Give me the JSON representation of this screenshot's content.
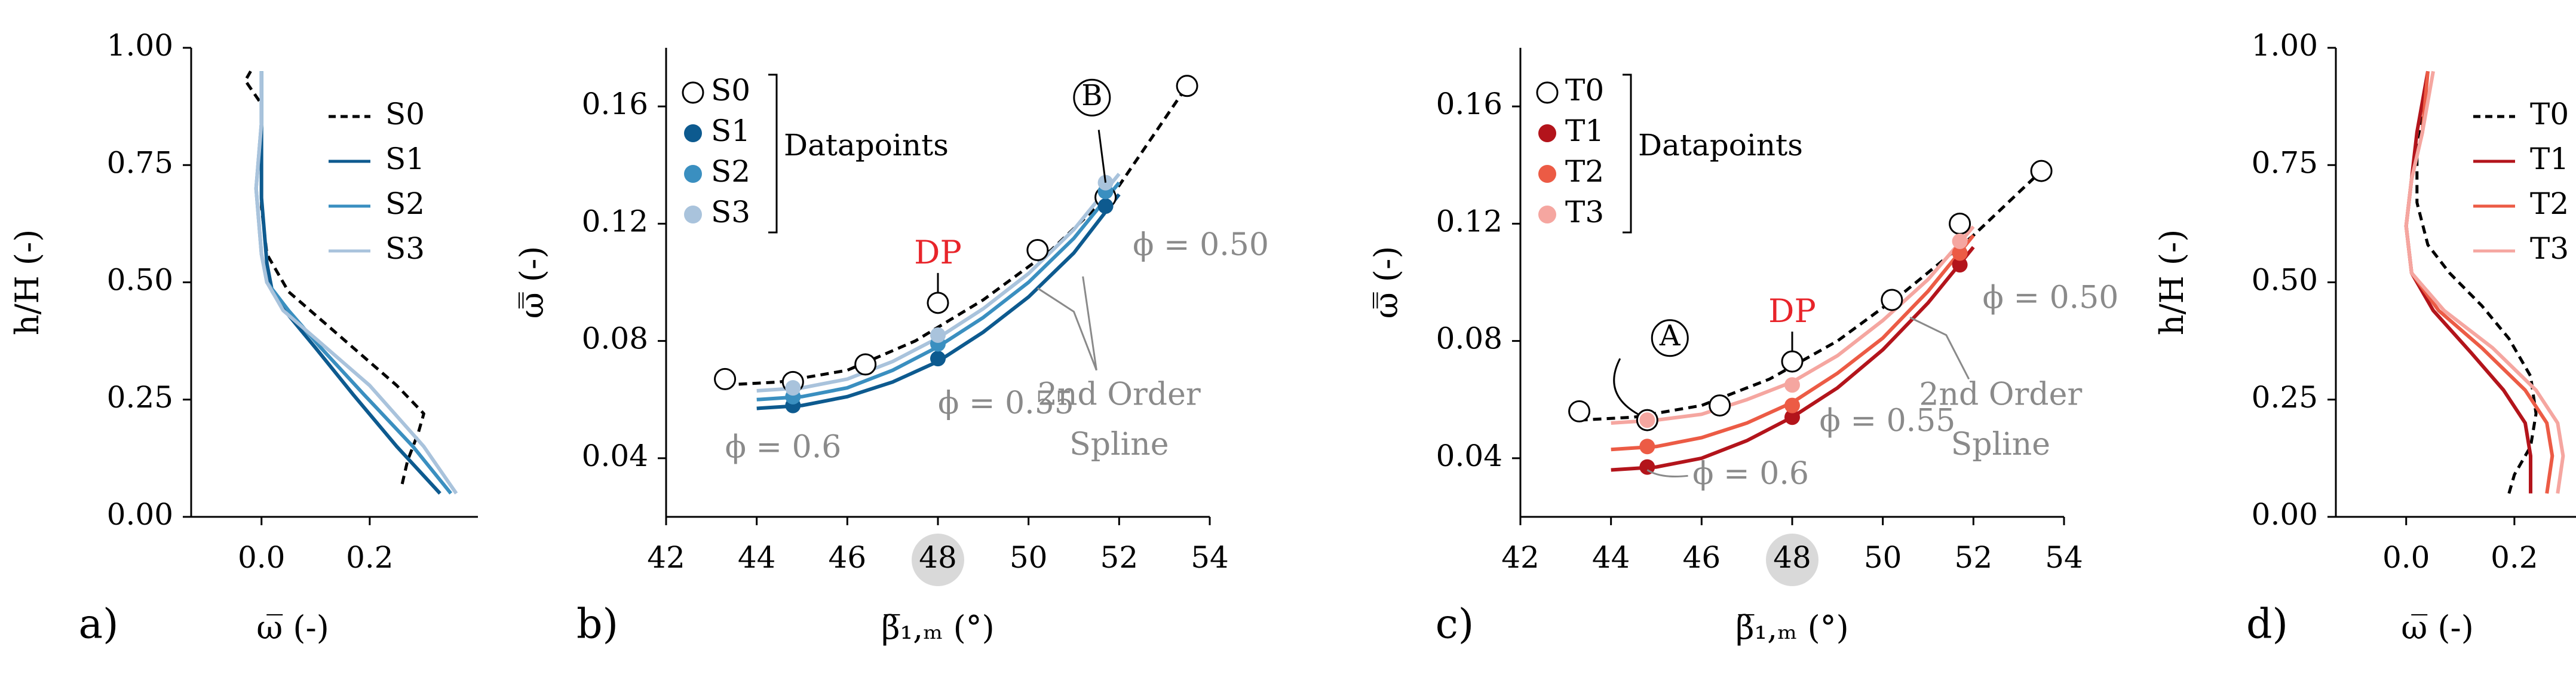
{
  "panels": {
    "a": {
      "label": "a)",
      "xlabel": "ω̅ (-)",
      "ylabel": "h/H (-)"
    },
    "b": {
      "label": "b)",
      "xlabel": "β̅₁,ₘ (°)",
      "ylabel": "ω̿ (-)"
    },
    "c": {
      "label": "c)",
      "xlabel": "β̅₁,ₘ (°)",
      "ylabel": "ω̿ (-)"
    },
    "d": {
      "label": "d)",
      "xlabel": "ω̅ (-)",
      "ylabel": "h/H (-)"
    }
  },
  "annotations": {
    "datapoints": "Datapoints",
    "dp": "DP",
    "spline_line1": "2nd Order",
    "spline_line2": "Spline",
    "phi_050": "ϕ = 0.50",
    "phi_055": "ϕ = 0.55",
    "phi_06": "ϕ = 0.6",
    "marker_b": "B",
    "marker_a": "A"
  },
  "colors": {
    "S0": "#000000",
    "S1": "#0d5a8f",
    "S2": "#3a8fc0",
    "S3": "#a9c3dc",
    "T0": "#000000",
    "T1": "#b3141b",
    "T2": "#ec5b45",
    "T3": "#f5a6a0",
    "annotation_gray": "#8a8a8a",
    "dp_red": "#e8242a",
    "highlight": "#d9d9d9"
  },
  "chart_data": [
    {
      "type": "line",
      "panel": "a",
      "xlabel": "ω̅ (-)",
      "ylabel": "h/H (-)",
      "xlim": [
        -0.13,
        0.4
      ],
      "ylim": [
        0,
        1
      ],
      "xticks": [
        "0.0",
        "0.2"
      ],
      "yticks": [
        "0.00",
        "0.25",
        "0.50",
        "0.75",
        "1.00"
      ],
      "legend": "top-right",
      "series": [
        {
          "name": "S0",
          "style": "dashed",
          "points": [
            [
              0.26,
              0.07
            ],
            [
              0.27,
              0.12
            ],
            [
              0.29,
              0.18
            ],
            [
              0.3,
              0.22
            ],
            [
              0.25,
              0.28
            ],
            [
              0.18,
              0.35
            ],
            [
              0.11,
              0.42
            ],
            [
              0.05,
              0.48
            ],
            [
              0.01,
              0.56
            ],
            [
              0.0,
              0.66
            ],
            [
              0.0,
              0.8
            ],
            [
              0.0,
              0.88
            ],
            [
              -0.03,
              0.93
            ],
            [
              -0.02,
              0.95
            ]
          ]
        },
        {
          "name": "S1",
          "style": "solid",
          "points": [
            [
              0.33,
              0.05
            ],
            [
              0.25,
              0.15
            ],
            [
              0.17,
              0.26
            ],
            [
              0.1,
              0.36
            ],
            [
              0.05,
              0.43
            ],
            [
              0.02,
              0.48
            ],
            [
              0.01,
              0.54
            ],
            [
              0.0,
              0.68
            ],
            [
              0.0,
              0.84
            ],
            [
              0.0,
              0.95
            ]
          ]
        },
        {
          "name": "S2",
          "style": "solid",
          "points": [
            [
              0.35,
              0.05
            ],
            [
              0.28,
              0.15
            ],
            [
              0.19,
              0.26
            ],
            [
              0.11,
              0.36
            ],
            [
              0.05,
              0.44
            ],
            [
              0.01,
              0.5
            ],
            [
              0.0,
              0.56
            ],
            [
              -0.01,
              0.7
            ],
            [
              0.0,
              0.84
            ],
            [
              0.0,
              0.95
            ]
          ]
        },
        {
          "name": "S3",
          "style": "solid",
          "points": [
            [
              0.36,
              0.05
            ],
            [
              0.3,
              0.15
            ],
            [
              0.2,
              0.28
            ],
            [
              0.11,
              0.37
            ],
            [
              0.04,
              0.44
            ],
            [
              0.01,
              0.5
            ],
            [
              0.0,
              0.56
            ],
            [
              -0.01,
              0.7
            ],
            [
              0.0,
              0.84
            ],
            [
              0.0,
              0.95
            ]
          ]
        }
      ]
    },
    {
      "type": "scatter",
      "panel": "b",
      "xlabel": "β̅₁,ₘ (°)",
      "ylabel": "ω̿ (-)",
      "xlim": [
        42,
        54
      ],
      "ylim": [
        0.02,
        0.18
      ],
      "xticks": [
        "42",
        "44",
        "46",
        "48",
        "50",
        "52",
        "54"
      ],
      "yticks": [
        "0.04",
        "0.08",
        "0.12",
        "0.16"
      ],
      "legend": "top-left",
      "series": [
        {
          "name": "S0",
          "style": "open",
          "points": [
            [
              43.3,
              0.067
            ],
            [
              44.8,
              0.066
            ],
            [
              46.4,
              0.072
            ],
            [
              48.0,
              0.093
            ],
            [
              50.2,
              0.111
            ],
            [
              51.7,
              0.129
            ],
            [
              53.5,
              0.167
            ]
          ],
          "fit": [
            [
              43.3,
              0.065
            ],
            [
              44.5,
              0.066
            ],
            [
              46,
              0.07
            ],
            [
              47.5,
              0.08
            ],
            [
              49,
              0.094
            ],
            [
              50.5,
              0.111
            ],
            [
              52,
              0.133
            ],
            [
              53.5,
              0.167
            ]
          ]
        },
        {
          "name": "S1",
          "style": "filled",
          "points": [
            [
              44.8,
              0.058
            ],
            [
              48.0,
              0.074
            ],
            [
              51.7,
              0.126
            ]
          ],
          "fit": [
            [
              44,
              0.057
            ],
            [
              45,
              0.058
            ],
            [
              46,
              0.061
            ],
            [
              47,
              0.066
            ],
            [
              48,
              0.073
            ],
            [
              49,
              0.083
            ],
            [
              50,
              0.095
            ],
            [
              51,
              0.11
            ],
            [
              52,
              0.13
            ]
          ]
        },
        {
          "name": "S2",
          "style": "filled",
          "points": [
            [
              44.8,
              0.061
            ],
            [
              48.0,
              0.079
            ],
            [
              51.7,
              0.131
            ]
          ],
          "fit": [
            [
              44,
              0.06
            ],
            [
              45,
              0.061
            ],
            [
              46,
              0.064
            ],
            [
              47,
              0.07
            ],
            [
              48,
              0.078
            ],
            [
              49,
              0.088
            ],
            [
              50,
              0.1
            ],
            [
              51,
              0.115
            ],
            [
              52,
              0.134
            ]
          ]
        },
        {
          "name": "S3",
          "style": "filled",
          "points": [
            [
              44.8,
              0.064
            ],
            [
              48.0,
              0.082
            ],
            [
              51.7,
              0.134
            ]
          ],
          "fit": [
            [
              44,
              0.063
            ],
            [
              45,
              0.064
            ],
            [
              46,
              0.067
            ],
            [
              47,
              0.073
            ],
            [
              48,
              0.081
            ],
            [
              49,
              0.091
            ],
            [
              50,
              0.103
            ],
            [
              51,
              0.118
            ],
            [
              52,
              0.137
            ]
          ]
        }
      ]
    },
    {
      "type": "scatter",
      "panel": "c",
      "xlabel": "β̅₁,ₘ (°)",
      "ylabel": "ω̿ (-)",
      "xlim": [
        42,
        54
      ],
      "ylim": [
        0.02,
        0.18
      ],
      "xticks": [
        "42",
        "44",
        "46",
        "48",
        "50",
        "52",
        "54"
      ],
      "yticks": [
        "0.04",
        "0.08",
        "0.12",
        "0.16"
      ],
      "legend": "top-left",
      "series": [
        {
          "name": "T0",
          "style": "open",
          "points": [
            [
              43.3,
              0.056
            ],
            [
              44.8,
              0.053
            ],
            [
              46.4,
              0.058
            ],
            [
              48.0,
              0.073
            ],
            [
              50.2,
              0.094
            ],
            [
              51.7,
              0.12
            ],
            [
              53.5,
              0.138
            ]
          ],
          "fit": [
            [
              43.3,
              0.053
            ],
            [
              44.5,
              0.054
            ],
            [
              46,
              0.058
            ],
            [
              47.5,
              0.067
            ],
            [
              49,
              0.08
            ],
            [
              50.5,
              0.097
            ],
            [
              52,
              0.116
            ],
            [
              53.5,
              0.138
            ]
          ]
        },
        {
          "name": "T1",
          "style": "filled",
          "points": [
            [
              44.8,
              0.037
            ],
            [
              48.0,
              0.054
            ],
            [
              51.7,
              0.106
            ]
          ],
          "fit": [
            [
              44,
              0.036
            ],
            [
              45,
              0.037
            ],
            [
              46,
              0.04
            ],
            [
              47,
              0.046
            ],
            [
              48,
              0.054
            ],
            [
              49,
              0.064
            ],
            [
              50,
              0.077
            ],
            [
              51,
              0.093
            ],
            [
              52,
              0.112
            ]
          ]
        },
        {
          "name": "T2",
          "style": "filled",
          "points": [
            [
              44.8,
              0.044
            ],
            [
              48.0,
              0.058
            ],
            [
              51.7,
              0.11
            ]
          ],
          "fit": [
            [
              44,
              0.043
            ],
            [
              45,
              0.044
            ],
            [
              46,
              0.047
            ],
            [
              47,
              0.052
            ],
            [
              48,
              0.059
            ],
            [
              49,
              0.069
            ],
            [
              50,
              0.081
            ],
            [
              51,
              0.097
            ],
            [
              52,
              0.116
            ]
          ]
        },
        {
          "name": "T3",
          "style": "filled",
          "points": [
            [
              44.8,
              0.053
            ],
            [
              48.0,
              0.065
            ],
            [
              51.7,
              0.114
            ]
          ],
          "fit": [
            [
              44,
              0.052
            ],
            [
              45,
              0.053
            ],
            [
              46,
              0.055
            ],
            [
              47,
              0.06
            ],
            [
              48,
              0.066
            ],
            [
              49,
              0.075
            ],
            [
              50,
              0.087
            ],
            [
              51,
              0.101
            ],
            [
              52,
              0.119
            ]
          ]
        }
      ]
    },
    {
      "type": "line",
      "panel": "d",
      "xlabel": "ω̅ (-)",
      "ylabel": "h/H (-)",
      "xlim": [
        -0.13,
        0.4
      ],
      "ylim": [
        0,
        1
      ],
      "xticks": [
        "0.0",
        "0.2"
      ],
      "yticks": [
        "0.00",
        "0.25",
        "0.50",
        "0.75",
        "1.00"
      ],
      "legend": "top-right",
      "series": [
        {
          "name": "T0",
          "style": "dashed",
          "points": [
            [
              0.19,
              0.05
            ],
            [
              0.2,
              0.09
            ],
            [
              0.23,
              0.15
            ],
            [
              0.24,
              0.22
            ],
            [
              0.23,
              0.3
            ],
            [
              0.19,
              0.38
            ],
            [
              0.14,
              0.45
            ],
            [
              0.08,
              0.52
            ],
            [
              0.04,
              0.58
            ],
            [
              0.02,
              0.67
            ],
            [
              0.02,
              0.77
            ],
            [
              0.03,
              0.85
            ],
            [
              0.04,
              0.95
            ]
          ]
        },
        {
          "name": "T1",
          "style": "solid",
          "points": [
            [
              0.23,
              0.05
            ],
            [
              0.23,
              0.13
            ],
            [
              0.22,
              0.2
            ],
            [
              0.18,
              0.27
            ],
            [
              0.12,
              0.35
            ],
            [
              0.05,
              0.44
            ],
            [
              0.01,
              0.52
            ],
            [
              0.0,
              0.62
            ],
            [
              0.01,
              0.72
            ],
            [
              0.02,
              0.82
            ],
            [
              0.04,
              0.95
            ]
          ]
        },
        {
          "name": "T2",
          "style": "solid",
          "points": [
            [
              0.26,
              0.05
            ],
            [
              0.27,
              0.13
            ],
            [
              0.26,
              0.2
            ],
            [
              0.22,
              0.27
            ],
            [
              0.14,
              0.36
            ],
            [
              0.06,
              0.44
            ],
            [
              0.01,
              0.52
            ],
            [
              0.0,
              0.62
            ],
            [
              0.01,
              0.72
            ],
            [
              0.03,
              0.82
            ],
            [
              0.04,
              0.95
            ]
          ]
        },
        {
          "name": "T3",
          "style": "solid",
          "points": [
            [
              0.28,
              0.05
            ],
            [
              0.29,
              0.13
            ],
            [
              0.28,
              0.2
            ],
            [
              0.24,
              0.27
            ],
            [
              0.16,
              0.36
            ],
            [
              0.07,
              0.44
            ],
            [
              0.01,
              0.52
            ],
            [
              0.0,
              0.62
            ],
            [
              0.01,
              0.72
            ],
            [
              0.03,
              0.82
            ],
            [
              0.05,
              0.95
            ]
          ]
        }
      ]
    }
  ]
}
